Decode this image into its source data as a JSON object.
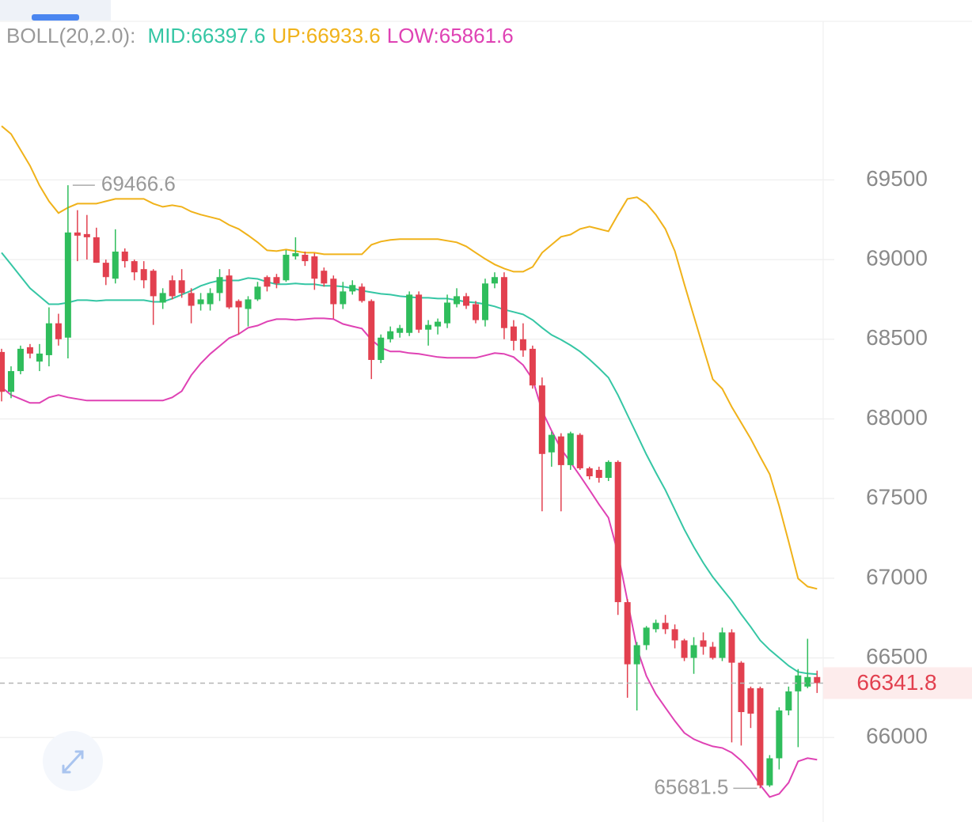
{
  "chart_data": {
    "type": "candlestick",
    "indicator": "BOLL(20,2.0):",
    "ylim": [
      65490,
      70490
    ],
    "yticks": [
      66000,
      66500,
      67000,
      67500,
      68000,
      68500,
      69000,
      69500
    ],
    "grid": true,
    "up_color": "#2fbd5c",
    "down_color": "#e2404f",
    "open": [
      68420,
      68170,
      68300,
      68450,
      68360,
      68400,
      68600,
      68510,
      69170,
      69160,
      69140,
      68980,
      68880,
      69050,
      68990,
      68940,
      68930,
      68730,
      68870,
      68870,
      68790,
      68720,
      68720,
      68790,
      68900,
      68740,
      68690,
      68750,
      68890,
      68890,
      68870,
      69020,
      69030,
      69020,
      68930,
      68880,
      68720,
      68800,
      68830,
      68740,
      68370,
      68500,
      68540,
      68540,
      68780,
      68560,
      68580,
      68600,
      68720,
      68770,
      68720,
      68620,
      68850,
      68890,
      68580,
      68500,
      68440,
      68210,
      67790,
      67890,
      67710,
      67900,
      67690,
      67680,
      67630,
      67730,
      66850,
      66460,
      66580,
      66680,
      66720,
      66680,
      66610,
      66500,
      66610,
      66570,
      66500,
      66660,
      66470,
      66310,
      66310,
      65700,
      65870,
      66170,
      66290,
      66320,
      66380
    ],
    "high": [
      68440,
      68330,
      68460,
      68470,
      68470,
      68700,
      68660,
      69466.6,
      69310,
      69280,
      69200,
      69000,
      69190,
      69070,
      69000,
      68990,
      68940,
      68820,
      68900,
      68940,
      68820,
      68790,
      68820,
      68940,
      68940,
      68750,
      68770,
      68860,
      68900,
      68910,
      69060,
      69140,
      69050,
      69040,
      68950,
      68900,
      68860,
      68870,
      68850,
      68750,
      68530,
      68580,
      68590,
      68800,
      68800,
      68620,
      68630,
      68780,
      68820,
      68790,
      68740,
      68880,
      68920,
      68920,
      68620,
      68600,
      68460,
      68260,
      67920,
      67910,
      67920,
      67910,
      67700,
      67700,
      67740,
      67740,
      66870,
      66600,
      66700,
      66740,
      66770,
      66710,
      66620,
      66630,
      66660,
      66600,
      66690,
      66680,
      66480,
      66320,
      66320,
      65890,
      66190,
      66320,
      66430,
      66620,
      66420
    ],
    "low": [
      68110,
      68130,
      68280,
      68380,
      68300,
      68330,
      68460,
      68380,
      68990,
      69000,
      68980,
      68840,
      68850,
      68950,
      68870,
      68820,
      68590,
      68690,
      68750,
      68760,
      68600,
      68680,
      68680,
      68740,
      68690,
      68530,
      68580,
      68740,
      68800,
      68820,
      68860,
      69000,
      68960,
      68810,
      68830,
      68630,
      68690,
      68780,
      68730,
      68250,
      68350,
      68480,
      68510,
      68520,
      68540,
      68460,
      68530,
      68570,
      68700,
      68690,
      68600,
      68580,
      68820,
      68500,
      68430,
      68390,
      68190,
      67420,
      67700,
      67420,
      67680,
      67680,
      67620,
      67600,
      67610,
      66770,
      66250,
      66170,
      66550,
      66660,
      66650,
      66560,
      66480,
      66400,
      66520,
      66490,
      66480,
      65970,
      65950,
      66060,
      65681.5,
      65690,
      65800,
      66140,
      65940,
      66310,
      66280
    ],
    "close": [
      68170,
      68300,
      68440,
      68410,
      68410,
      68600,
      68500,
      69170,
      69150,
      69140,
      68980,
      68890,
      69050,
      68990,
      68920,
      68870,
      68770,
      68790,
      68770,
      68790,
      68710,
      68750,
      68790,
      68890,
      68700,
      68700,
      68750,
      68830,
      68830,
      68850,
      69030,
      69040,
      68990,
      68880,
      68850,
      68720,
      68800,
      68840,
      68740,
      68370,
      68510,
      68550,
      68570,
      68780,
      68560,
      68590,
      68610,
      68730,
      68770,
      68710,
      68620,
      68850,
      68890,
      68570,
      68490,
      68430,
      68210,
      67780,
      67900,
      67710,
      67910,
      67690,
      67640,
      67630,
      67730,
      66850,
      66460,
      66580,
      66690,
      66720,
      66680,
      66610,
      66500,
      66580,
      66570,
      66500,
      66660,
      66470,
      66160,
      66150,
      65700,
      65870,
      66170,
      66290,
      66390,
      66380,
      66341.8
    ],
    "series": [
      {
        "name": "MID:66397.6",
        "color": "#35c6a4",
        "values": [
          69043,
          68969,
          68894,
          68820,
          68770,
          68720,
          68720,
          68730,
          68745,
          68745,
          68740,
          68745,
          68745,
          68745,
          68745,
          68745,
          68735,
          68735,
          68755,
          68780,
          68805,
          68835,
          68855,
          68869,
          68869,
          68869,
          68884,
          68879,
          68860,
          68845,
          68845,
          68850,
          68845,
          68845,
          68835,
          68835,
          68830,
          68820,
          68805,
          68795,
          68785,
          68780,
          68770,
          68765,
          68760,
          68760,
          68755,
          68755,
          68745,
          68735,
          68730,
          68720,
          68706,
          68686,
          68671,
          68656,
          68621,
          68572,
          68527,
          68497,
          68462,
          68423,
          68373,
          68318,
          68259,
          68150,
          68025,
          67901,
          67777,
          67663,
          67554,
          67430,
          67306,
          67197,
          67097,
          67008,
          66933,
          66859,
          66774,
          66695,
          66610,
          66551,
          66501,
          66451,
          66412,
          66402,
          66397.6
        ]
      },
      {
        "name": "UP:66933.6",
        "color": "#f0b21a",
        "values": [
          69838,
          69788,
          69688,
          69589,
          69465,
          69366,
          69292,
          69326,
          69351,
          69351,
          69351,
          69366,
          69381,
          69381,
          69381,
          69381,
          69351,
          69331,
          69341,
          69331,
          69301,
          69282,
          69267,
          69252,
          69217,
          69192,
          69152,
          69108,
          69058,
          69053,
          69063,
          69053,
          69043,
          69043,
          69033,
          69033,
          69033,
          69033,
          69033,
          69093,
          69113,
          69123,
          69128,
          69128,
          69128,
          69128,
          69128,
          69118,
          69108,
          69083,
          69043,
          69004,
          68969,
          68944,
          68924,
          68924,
          68954,
          69043,
          69093,
          69143,
          69157,
          69192,
          69207,
          69192,
          69177,
          69282,
          69381,
          69391,
          69351,
          69282,
          69192,
          69053,
          68845,
          68646,
          68447,
          68249,
          68189,
          68075,
          67976,
          67876,
          67762,
          67653,
          67454,
          67231,
          66998,
          66948,
          66933.6
        ]
      },
      {
        "name": "LOW:65861.6",
        "color": "#df42b4",
        "values": [
          68199,
          68150,
          68125,
          68100,
          68100,
          68135,
          68150,
          68135,
          68125,
          68115,
          68115,
          68115,
          68115,
          68115,
          68115,
          68115,
          68115,
          68115,
          68135,
          68174,
          68274,
          68348,
          68408,
          68457,
          68507,
          68532,
          68572,
          68586,
          68611,
          68626,
          68626,
          68621,
          68626,
          68631,
          68631,
          68626,
          68596,
          68581,
          68567,
          68497,
          68447,
          68423,
          68423,
          68413,
          68408,
          68398,
          68388,
          68383,
          68383,
          68383,
          68383,
          68398,
          68413,
          68408,
          68388,
          68338,
          68249,
          68050,
          67926,
          67812,
          67728,
          67643,
          67554,
          67464,
          67380,
          67157,
          66859,
          66561,
          66387,
          66273,
          66188,
          66104,
          66029,
          65990,
          65965,
          65945,
          65935,
          65905,
          65856,
          65791,
          65702,
          65627,
          65647,
          65717,
          65851,
          65871,
          65861.6
        ]
      }
    ],
    "high_marker": 69466.6,
    "low_marker": 65681.5,
    "last_price": 66341.8
  }
}
